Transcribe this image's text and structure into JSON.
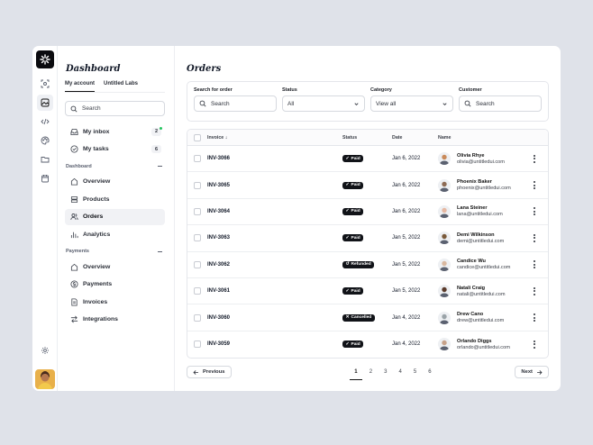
{
  "sidebar": {
    "title": "Dashboard",
    "tabs": [
      {
        "label": "My account",
        "active": true
      },
      {
        "label": "Untitled Labs",
        "active": false
      }
    ],
    "search_placeholder": "Search",
    "top_items": [
      {
        "label": "My inbox",
        "badge": "2",
        "icon": "inbox-icon",
        "has_dot": true
      },
      {
        "label": "My tasks",
        "badge": "6",
        "icon": "tasks-icon",
        "has_dot": false
      }
    ],
    "sections": [
      {
        "label": "Dashboard",
        "items": [
          {
            "label": "Overview",
            "icon": "home-icon",
            "active": false
          },
          {
            "label": "Products",
            "icon": "products-icon",
            "active": false
          },
          {
            "label": "Orders",
            "icon": "users-icon",
            "active": true
          },
          {
            "label": "Analytics",
            "icon": "analytics-icon",
            "active": false
          }
        ]
      },
      {
        "label": "Payments",
        "items": [
          {
            "label": "Overview",
            "icon": "home-icon",
            "active": false
          },
          {
            "label": "Payments",
            "icon": "dollar-icon",
            "active": false
          },
          {
            "label": "Invoices",
            "icon": "invoice-icon",
            "active": false
          },
          {
            "label": "Integrations",
            "icon": "integrations-icon",
            "active": false
          }
        ]
      }
    ]
  },
  "main": {
    "title": "Orders",
    "filters": {
      "search": {
        "label": "Search for order",
        "placeholder": "Search"
      },
      "status": {
        "label": "Status",
        "value": "All"
      },
      "category": {
        "label": "Category",
        "value": "View all"
      },
      "customer": {
        "label": "Customer",
        "placeholder": "Search"
      }
    },
    "table": {
      "headers": {
        "invoice": "Invoice",
        "status": "Status",
        "date": "Date",
        "name": "Name"
      },
      "rows": [
        {
          "invoice": "INV-3066",
          "status": "Paid",
          "date": "Jan 6, 2022",
          "name": "Olivia Rhye",
          "email": "olivia@untitledui.com",
          "avatar_color": "#c98a5a"
        },
        {
          "invoice": "INV-3065",
          "status": "Paid",
          "date": "Jan 6, 2022",
          "name": "Phoenix Baker",
          "email": "phoenix@untitledui.com",
          "avatar_color": "#8d6b54"
        },
        {
          "invoice": "INV-3064",
          "status": "Paid",
          "date": "Jan 6, 2022",
          "name": "Lana Steiner",
          "email": "lana@untitledui.com",
          "avatar_color": "#e6b8a2"
        },
        {
          "invoice": "INV-3063",
          "status": "Paid",
          "date": "Jan 5, 2022",
          "name": "Demi Wilkinson",
          "email": "demi@untitledui.com",
          "avatar_color": "#7a5a3a"
        },
        {
          "invoice": "INV-3062",
          "status": "Refunded",
          "date": "Jan 5, 2022",
          "name": "Candice Wu",
          "email": "candice@untitledui.com",
          "avatar_color": "#d9b8a0"
        },
        {
          "invoice": "INV-3061",
          "status": "Paid",
          "date": "Jan 5, 2022",
          "name": "Natali Craig",
          "email": "natali@untitledui.com",
          "avatar_color": "#5a3a2a"
        },
        {
          "invoice": "INV-3060",
          "status": "Cancelled",
          "date": "Jan 4, 2022",
          "name": "Drew Cano",
          "email": "drew@untitledui.com",
          "avatar_color": "#9aa3a8"
        },
        {
          "invoice": "INV-3059",
          "status": "Paid",
          "date": "Jan 4, 2022",
          "name": "Orlando Diggs",
          "email": "orlando@untitledui.com",
          "avatar_color": "#c7a28a"
        }
      ]
    },
    "pagination": {
      "previous_label": "Previous",
      "next_label": "Next",
      "pages": [
        "1",
        "2",
        "3",
        "4",
        "5",
        "6"
      ],
      "current": "1"
    }
  },
  "colors": {
    "accent": "#111318",
    "notification_dot": "#22c55e",
    "background": "#dfe2e9"
  }
}
